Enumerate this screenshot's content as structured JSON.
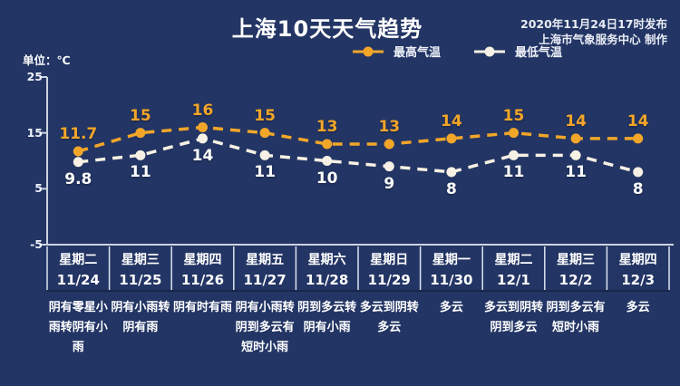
{
  "header": {
    "title": "上海10天天气趋势",
    "issued": "2020年11月24日17时发布",
    "maker": "上海市气象服务中心 制作"
  },
  "axis": {
    "unit_label": "单位：℃"
  },
  "colors": {
    "background": "#233564",
    "high_series": "#F2A629",
    "low_series": "#F6F1E4",
    "axis_line": "#CDD4E2",
    "text": "#FFFFFF"
  },
  "chart_data": {
    "type": "line",
    "title": "上海10天天气趋势",
    "ylabel": "单位：℃",
    "ylim": [
      -5,
      25
    ],
    "yticks": [
      25,
      15,
      5,
      -5
    ],
    "grid": false,
    "legend_position": "top",
    "categories": [
      {
        "day": "星期二",
        "date": "11/24",
        "weather": "阴有零星小雨转阴有小雨"
      },
      {
        "day": "星期三",
        "date": "11/25",
        "weather": "阴有小雨转阴有雨"
      },
      {
        "day": "星期四",
        "date": "11/26",
        "weather": "阴有时有雨"
      },
      {
        "day": "星期五",
        "date": "11/27",
        "weather": "阴有小雨转阴到多云有短时小雨"
      },
      {
        "day": "星期六",
        "date": "11/28",
        "weather": "阴到多云转阴有小雨"
      },
      {
        "day": "星期日",
        "date": "11/29",
        "weather": "多云到阴转多云"
      },
      {
        "day": "星期一",
        "date": "11/30",
        "weather": "多云"
      },
      {
        "day": "星期二",
        "date": "12/1",
        "weather": "多云到阴转阴到多云"
      },
      {
        "day": "星期三",
        "date": "12/2",
        "weather": "阴到多云有短时小雨"
      },
      {
        "day": "星期四",
        "date": "12/3",
        "weather": "多云"
      }
    ],
    "series": [
      {
        "name": "最高气温",
        "color": "#F2A629",
        "label_color": "#F2A629",
        "values": [
          11.7,
          15,
          16,
          15,
          13,
          13,
          14,
          15,
          14,
          14
        ]
      },
      {
        "name": "最低气温",
        "color": "#F6F1E4",
        "label_color": "#FFFFFF",
        "values": [
          9.8,
          11,
          14,
          11,
          10,
          9,
          8,
          11,
          11,
          8
        ]
      }
    ]
  }
}
